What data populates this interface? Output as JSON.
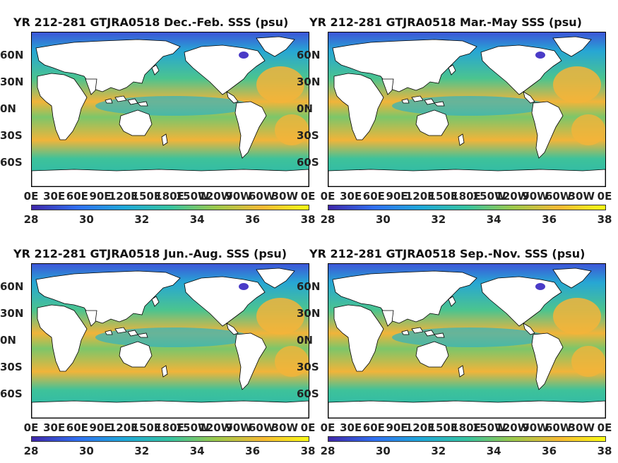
{
  "panels": [
    {
      "title": "YR 212-281 GTJRA0518 Dec.-Feb. SSS (psu)"
    },
    {
      "title": "YR 212-281 GTJRA0518 Mar.-May SSS (psu)"
    },
    {
      "title": "YR 212-281 GTJRA0518 Jun.-Aug. SSS (psu)"
    },
    {
      "title": "YR 212-281 GTJRA0518 Sep.-Nov. SSS (psu)"
    }
  ],
  "lat_ticks": [
    "60N",
    "30N",
    "0N",
    "30S",
    "60S"
  ],
  "lon_ticks": [
    "0E",
    "30E",
    "60E",
    "90E",
    "120E",
    "150E",
    "180E",
    "150W",
    "120W",
    "90W",
    "60W",
    "30W",
    "0E"
  ],
  "colorbar": {
    "ticks": [
      "28",
      "30",
      "32",
      "34",
      "36",
      "38"
    ],
    "colors": [
      "#3e26a8",
      "#2f6ff0",
      "#1ea7d8",
      "#35c3a0",
      "#9cc84a",
      "#f5b933",
      "#f9fb14"
    ]
  },
  "colors": {
    "land": "#ffffff",
    "ocean_mid": "#3ec29a",
    "subtropics": "#f1b43a",
    "low": "#3d56d8"
  }
}
